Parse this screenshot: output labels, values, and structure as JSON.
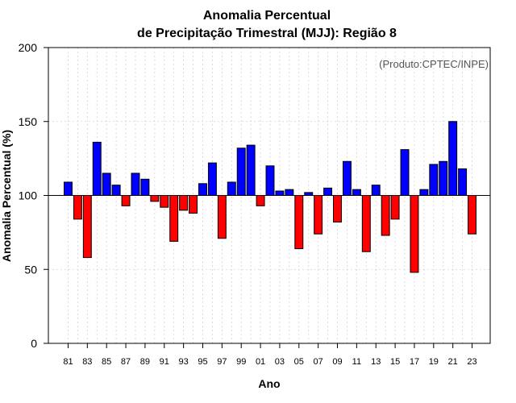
{
  "chart_data": {
    "type": "bar",
    "title_line1": "Anomalia Percentual",
    "title_line2": "de Precipitação Trimestral (MJJ): Região 8",
    "xlabel": "Ano",
    "ylabel": "Anomalia Percentual (%)",
    "credit": "(Produto:CPTEC/INPE)",
    "baseline": 100,
    "ylim": [
      0,
      200
    ],
    "yticks": [
      "0",
      "50",
      "100",
      "150",
      "200"
    ],
    "grid": true,
    "colors": {
      "above": "#0000ff",
      "below": "#ff0000",
      "outline": "#000000",
      "grid": "#d3d3d3"
    },
    "categories": [
      "1981",
      "1982",
      "1983",
      "1984",
      "1985",
      "1986",
      "1987",
      "1988",
      "1989",
      "1990",
      "1991",
      "1992",
      "1993",
      "1994",
      "1995",
      "1996",
      "1997",
      "1998",
      "1999",
      "2000",
      "2001",
      "2002",
      "2003",
      "2004",
      "2005",
      "2006",
      "2007",
      "2008",
      "2009",
      "2010",
      "2011",
      "2012",
      "2013",
      "2014",
      "2015",
      "2016",
      "2017",
      "2018",
      "2019",
      "2020",
      "2021",
      "2022",
      "2023"
    ],
    "xtick_labels": [
      "81",
      "83",
      "85",
      "87",
      "89",
      "91",
      "93",
      "95",
      "97",
      "99",
      "01",
      "03",
      "05",
      "07",
      "09",
      "11",
      "13",
      "15",
      "17",
      "19",
      "21",
      "23"
    ],
    "values": [
      109,
      84,
      58,
      136,
      115,
      107,
      93,
      115,
      111,
      96,
      92,
      69,
      90,
      88,
      108,
      122,
      71,
      109,
      132,
      134,
      93,
      120,
      103,
      104,
      64,
      102,
      74,
      105,
      82,
      123,
      104,
      62,
      107,
      73,
      84,
      131,
      48,
      104,
      121,
      123,
      150,
      118,
      74
    ]
  }
}
